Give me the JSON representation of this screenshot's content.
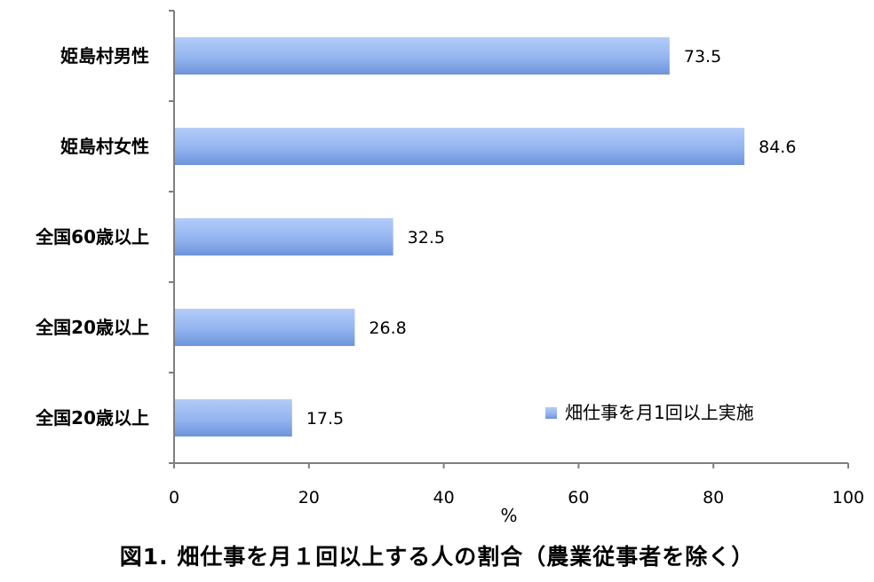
{
  "chart_data": {
    "type": "bar",
    "orientation": "horizontal",
    "categories": [
      "姫島村男性",
      "姫島村女性",
      "全国60歳以上",
      "全国20歳以上",
      "全国20歳以上"
    ],
    "series": [
      {
        "name": "畑仕事を月1回以上実施",
        "values": [
          73.5,
          84.6,
          32.5,
          26.8,
          17.5
        ]
      }
    ],
    "value_labels": [
      "73.5",
      "84.6",
      "32.5",
      "26.8",
      "17.5"
    ],
    "xlabel": "%",
    "ylabel": "",
    "xlim": [
      0,
      100
    ],
    "xticks": [
      "0",
      "20",
      "40",
      "60",
      "80",
      "100"
    ],
    "grid": false,
    "legend_position": "bottom-right",
    "colors": {
      "bar": "#8fb1ee",
      "bar_light": "#aac6f7",
      "bar_dark": "#6f95dc",
      "axis": "#7f7f7f"
    }
  },
  "caption": "図1. 畑仕事を月１回以上する人の割合（農業従事者を除く）"
}
